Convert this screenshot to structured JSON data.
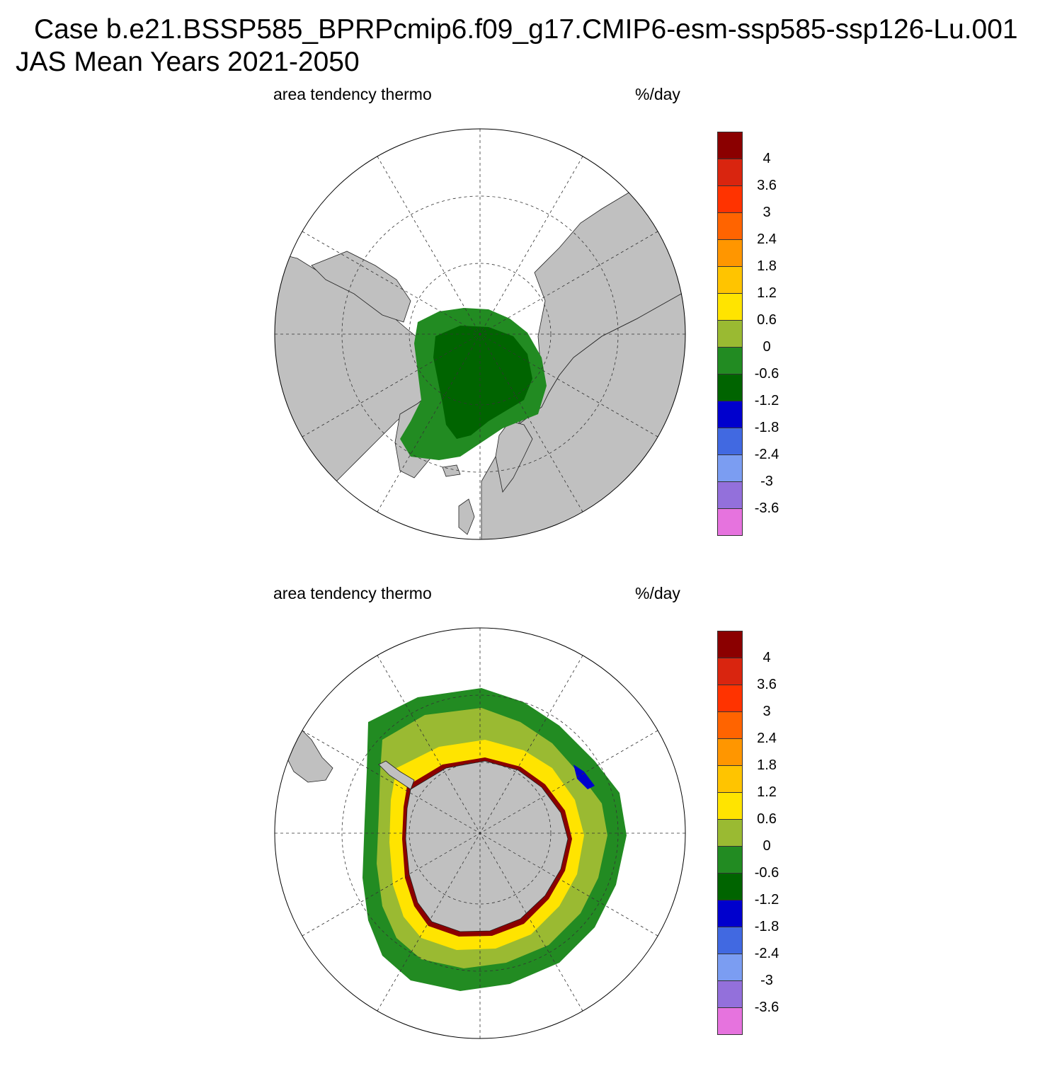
{
  "header": {
    "case_line": "Case b.e21.BSSP585_BPRPcmip6.f09_g17.CMIP6-esm-ssp585-ssp126-Lu.001",
    "period_line": "JAS Mean   Years 2021-2050"
  },
  "panels": [
    {
      "id": "arctic",
      "variable": "area tendency thermo",
      "units": "%/day",
      "hemisphere": "north"
    },
    {
      "id": "antarctic",
      "variable": "area tendency thermo",
      "units": "%/day",
      "hemisphere": "south"
    }
  ],
  "colorbar": {
    "colors": [
      "#8b0000",
      "#d9250f",
      "#ff3300",
      "#ff6400",
      "#ff9600",
      "#ffc400",
      "#ffe400",
      "#9aba32",
      "#228b22",
      "#006400",
      "#0000cd",
      "#4169e1",
      "#7b9df2",
      "#9370db",
      "#e673de"
    ],
    "labels": [
      "4",
      "3.6",
      "3",
      "2.4",
      "1.8",
      "1.2",
      "0.6",
      "0",
      "-0.6",
      "-1.2",
      "-1.8",
      "-2.4",
      "-3",
      "-3.6"
    ]
  },
  "colors": {
    "land": "#c0c0c0",
    "ocean": "#ffffff",
    "grid": "#333333"
  }
}
